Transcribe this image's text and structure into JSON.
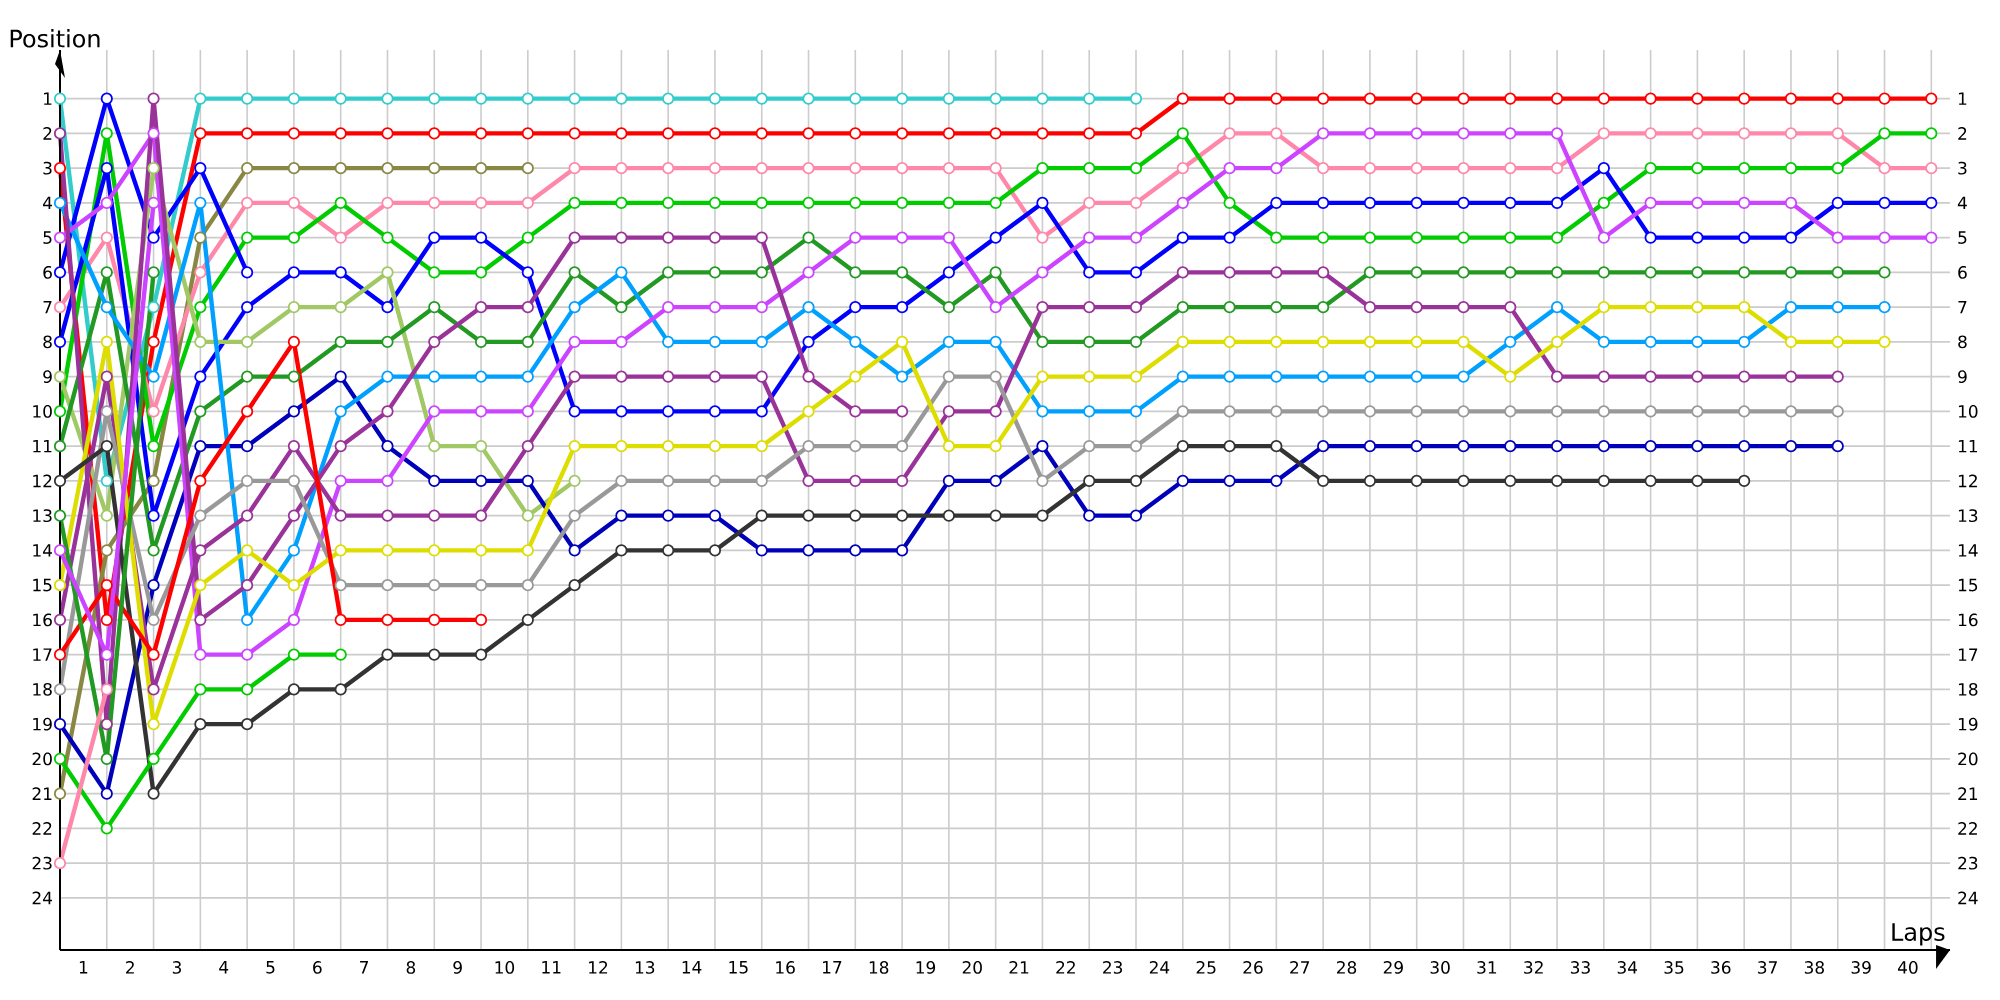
{
  "chart_data": {
    "type": "line",
    "xlabel": "Laps",
    "ylabel": "Position",
    "x": [
      0,
      1,
      2,
      3,
      4,
      5,
      6,
      7,
      8,
      9,
      10,
      11,
      12,
      13,
      14,
      15,
      16,
      17,
      18,
      19,
      20,
      21,
      22,
      23,
      24,
      25,
      26,
      27,
      28,
      29,
      30,
      31,
      32,
      33,
      34,
      35,
      36,
      37,
      38,
      39,
      40
    ],
    "xlim": [
      0,
      40.4
    ],
    "ylim": [
      25.5,
      -0.4
    ],
    "y2lim": [
      25.5,
      -0.4
    ],
    "xticks": [
      {
        "value": 0.5,
        "label": "1"
      },
      {
        "value": 1.5,
        "label": "2"
      },
      {
        "value": 2.5,
        "label": "3"
      },
      {
        "value": 3.5,
        "label": "4"
      },
      {
        "value": 4.5,
        "label": "5"
      },
      {
        "value": 5.5,
        "label": "6"
      },
      {
        "value": 6.5,
        "label": "7"
      },
      {
        "value": 7.5,
        "label": "8"
      },
      {
        "value": 8.5,
        "label": "9"
      },
      {
        "value": 9.5,
        "label": "10"
      },
      {
        "value": 10.5,
        "label": "11"
      },
      {
        "value": 11.5,
        "label": "12"
      },
      {
        "value": 12.5,
        "label": "13"
      },
      {
        "value": 13.5,
        "label": "14"
      },
      {
        "value": 14.5,
        "label": "15"
      },
      {
        "value": 15.5,
        "label": "16"
      },
      {
        "value": 16.5,
        "label": "17"
      },
      {
        "value": 17.5,
        "label": "18"
      },
      {
        "value": 18.5,
        "label": "19"
      },
      {
        "value": 19.5,
        "label": "20"
      },
      {
        "value": 20.5,
        "label": "21"
      },
      {
        "value": 21.5,
        "label": "22"
      },
      {
        "value": 22.5,
        "label": "23"
      },
      {
        "value": 23.5,
        "label": "24"
      },
      {
        "value": 24.5,
        "label": "25"
      },
      {
        "value": 25.5,
        "label": "26"
      },
      {
        "value": 26.5,
        "label": "27"
      },
      {
        "value": 27.5,
        "label": "28"
      },
      {
        "value": 28.5,
        "label": "29"
      },
      {
        "value": 29.5,
        "label": "30"
      },
      {
        "value": 30.5,
        "label": "31"
      },
      {
        "value": 31.5,
        "label": "32"
      },
      {
        "value": 32.5,
        "label": "33"
      },
      {
        "value": 33.5,
        "label": "34"
      },
      {
        "value": 34.5,
        "label": "35"
      },
      {
        "value": 35.5,
        "label": "36"
      },
      {
        "value": 36.5,
        "label": "37"
      },
      {
        "value": 37.5,
        "label": "38"
      },
      {
        "value": 38.5,
        "label": "39"
      },
      {
        "value": 39.5,
        "label": "40"
      },
      {
        "value": 1,
        "label": null
      },
      {
        "value": 2,
        "label": null
      },
      {
        "value": 3,
        "label": null
      },
      {
        "value": 4,
        "label": null
      },
      {
        "value": 5,
        "label": null
      },
      {
        "value": 6,
        "label": null
      },
      {
        "value": 7,
        "label": null
      },
      {
        "value": 8,
        "label": null
      },
      {
        "value": 9,
        "label": null
      },
      {
        "value": 10,
        "label": null
      },
      {
        "value": 11,
        "label": null
      },
      {
        "value": 12,
        "label": null
      },
      {
        "value": 13,
        "label": null
      },
      {
        "value": 14,
        "label": null
      },
      {
        "value": 15,
        "label": null
      },
      {
        "value": 16,
        "label": null
      },
      {
        "value": 17,
        "label": null
      },
      {
        "value": 18,
        "label": null
      },
      {
        "value": 19,
        "label": null
      },
      {
        "value": 20,
        "label": null
      },
      {
        "value": 21,
        "label": null
      },
      {
        "value": 22,
        "label": null
      },
      {
        "value": 23,
        "label": null
      },
      {
        "value": 24,
        "label": null
      },
      {
        "value": 25,
        "label": null
      },
      {
        "value": 26,
        "label": null
      },
      {
        "value": 27,
        "label": null
      },
      {
        "value": 28,
        "label": null
      },
      {
        "value": 29,
        "label": null
      },
      {
        "value": 30,
        "label": null
      },
      {
        "value": 31,
        "label": null
      },
      {
        "value": 32,
        "label": null
      },
      {
        "value": 33,
        "label": null
      },
      {
        "value": 34,
        "label": null
      },
      {
        "value": 35,
        "label": null
      },
      {
        "value": 36,
        "label": null
      },
      {
        "value": 37,
        "label": null
      },
      {
        "value": 38,
        "label": null
      },
      {
        "value": 39,
        "label": null
      },
      {
        "value": 40,
        "label": null
      }
    ],
    "yticks": [
      1,
      2,
      3,
      4,
      5,
      6,
      7,
      8,
      9,
      10,
      11,
      12,
      13,
      14,
      15,
      16,
      17,
      18,
      19,
      20,
      21,
      22,
      23,
      24
    ],
    "y2ticks": [
      1,
      2,
      3,
      4,
      5,
      6,
      7,
      8,
      9,
      10,
      11,
      12,
      13,
      14,
      15,
      16,
      17,
      18,
      19,
      20,
      21,
      22,
      23,
      24
    ],
    "grid": true,
    "marker": "circle",
    "line_style": "solid",
    "series": [
      {
        "color": "#33cccc",
        "values": [
          1,
          12,
          7,
          1,
          1,
          1,
          1,
          1,
          1,
          1,
          1,
          1,
          1,
          1,
          1,
          1,
          1,
          1,
          1,
          1,
          1,
          1,
          1,
          1,
          null,
          null,
          null,
          null,
          null,
          null,
          null,
          null,
          null,
          null,
          null,
          null,
          null,
          null,
          null,
          null,
          null
        ]
      },
      {
        "color": "#ff0000",
        "values": [
          3,
          16,
          8,
          2,
          2,
          2,
          2,
          2,
          2,
          2,
          2,
          2,
          2,
          2,
          2,
          2,
          2,
          2,
          2,
          2,
          2,
          2,
          2,
          2,
          1,
          1,
          1,
          1,
          1,
          1,
          1,
          1,
          1,
          1,
          1,
          1,
          1,
          1,
          1,
          1,
          1
        ]
      },
      {
        "color": "#888844",
        "values": [
          21,
          14,
          12,
          5,
          3,
          3,
          3,
          3,
          3,
          3,
          3,
          null,
          null,
          null,
          null,
          null,
          null,
          null,
          null,
          null,
          null,
          null,
          null,
          null,
          null,
          null,
          null,
          null,
          null,
          null,
          null,
          null,
          null,
          null,
          null,
          null,
          null,
          null,
          null,
          null,
          null
        ]
      },
      {
        "color": "#ff88aa",
        "values": [
          7,
          5,
          10,
          6,
          4,
          4,
          5,
          4,
          4,
          4,
          4,
          3,
          3,
          3,
          3,
          3,
          3,
          3,
          3,
          3,
          3,
          5,
          4,
          4,
          3,
          2,
          2,
          3,
          3,
          3,
          3,
          3,
          3,
          2,
          2,
          2,
          2,
          2,
          2,
          3,
          3
        ]
      },
      {
        "color": "#00cc00",
        "values": [
          10,
          2,
          11,
          7,
          5,
          5,
          4,
          5,
          6,
          6,
          5,
          4,
          4,
          4,
          4,
          4,
          4,
          4,
          4,
          4,
          4,
          3,
          3,
          3,
          2,
          4,
          5,
          5,
          5,
          5,
          5,
          5,
          5,
          4,
          3,
          3,
          3,
          3,
          3,
          2,
          2
        ]
      },
      {
        "color": "#0000ff",
        "values": [
          8,
          3,
          13,
          9,
          7,
          6,
          6,
          7,
          5,
          5,
          6,
          10,
          10,
          10,
          10,
          10,
          8,
          7,
          7,
          6,
          5,
          4,
          6,
          6,
          5,
          5,
          4,
          4,
          4,
          4,
          4,
          4,
          4,
          3,
          5,
          5,
          5,
          5,
          4,
          4,
          4
        ]
      },
      {
        "color": "#0000ff",
        "values": [
          6,
          1,
          5,
          3,
          6,
          null,
          null,
          null,
          null,
          null,
          null,
          null,
          null,
          null,
          null,
          null,
          null,
          null,
          null,
          null,
          null,
          null,
          null,
          null,
          null,
          null,
          null,
          null,
          null,
          null,
          null,
          null,
          null,
          null,
          null,
          null,
          null,
          null,
          null,
          null,
          null
        ]
      },
      {
        "color": "#a0c864",
        "values": [
          9,
          13,
          3,
          8,
          8,
          7,
          7,
          6,
          11,
          11,
          13,
          12,
          null,
          null,
          null,
          null,
          null,
          null,
          null,
          null,
          null,
          null,
          null,
          null,
          null,
          null,
          null,
          null,
          null,
          null,
          null,
          null,
          null,
          null,
          null,
          null,
          null,
          null,
          null,
          null,
          null
        ]
      },
      {
        "color": "#229922",
        "values": [
          11,
          6,
          14,
          10,
          9,
          9,
          8,
          8,
          7,
          8,
          8,
          6,
          7,
          6,
          6,
          6,
          5,
          6,
          6,
          7,
          6,
          8,
          8,
          8,
          7,
          7,
          7,
          7,
          6,
          6,
          6,
          6,
          6,
          6,
          6,
          6,
          6,
          6,
          6,
          6,
          null
        ]
      },
      {
        "color": "#0000bb",
        "values": [
          19,
          21,
          15,
          11,
          11,
          10,
          9,
          11,
          12,
          12,
          12,
          14,
          13,
          13,
          13,
          14,
          14,
          14,
          14,
          12,
          12,
          11,
          13,
          13,
          12,
          12,
          12,
          11,
          11,
          11,
          11,
          11,
          11,
          11,
          11,
          11,
          11,
          11,
          11,
          null,
          null
        ]
      },
      {
        "color": "#00a0ff",
        "values": [
          4,
          7,
          9,
          4,
          16,
          14,
          10,
          9,
          9,
          9,
          9,
          7,
          6,
          8,
          8,
          8,
          7,
          8,
          9,
          8,
          8,
          10,
          10,
          10,
          9,
          9,
          9,
          9,
          9,
          9,
          9,
          8,
          7,
          8,
          8,
          8,
          8,
          7,
          7,
          7,
          null
        ]
      },
      {
        "color": "#cc44ff",
        "values": [
          5,
          4,
          2,
          17,
          17,
          16,
          12,
          12,
          10,
          10,
          10,
          8,
          8,
          7,
          7,
          7,
          6,
          5,
          5,
          5,
          7,
          6,
          5,
          5,
          4,
          3,
          3,
          2,
          2,
          2,
          2,
          2,
          2,
          5,
          4,
          4,
          4,
          4,
          5,
          5,
          5
        ]
      },
      {
        "color": "#993399",
        "values": [
          16,
          9,
          18,
          14,
          13,
          11,
          13,
          13,
          13,
          13,
          11,
          9,
          9,
          9,
          9,
          9,
          12,
          12,
          12,
          10,
          10,
          7,
          7,
          7,
          6,
          6,
          6,
          6,
          7,
          7,
          7,
          7,
          9,
          9,
          9,
          9,
          9,
          9,
          9,
          null,
          null
        ]
      },
      {
        "color": "#993399",
        "values": [
          2,
          19,
          1,
          16,
          15,
          13,
          11,
          10,
          8,
          7,
          7,
          5,
          5,
          5,
          5,
          5,
          9,
          10,
          10,
          null,
          null,
          null,
          null,
          null,
          null,
          null,
          null,
          null,
          null,
          null,
          null,
          null,
          null,
          null,
          null,
          null,
          null,
          null,
          null,
          null,
          null
        ]
      },
      {
        "color": "#999999",
        "values": [
          18,
          10,
          16,
          13,
          12,
          12,
          15,
          15,
          15,
          15,
          15,
          13,
          12,
          12,
          12,
          12,
          11,
          11,
          11,
          9,
          9,
          12,
          11,
          11,
          10,
          10,
          10,
          10,
          10,
          10,
          10,
          10,
          10,
          10,
          10,
          10,
          10,
          10,
          10,
          null,
          null
        ]
      },
      {
        "color": "#dddd00",
        "values": [
          15,
          8,
          19,
          15,
          14,
          15,
          14,
          14,
          14,
          14,
          14,
          11,
          11,
          11,
          11,
          11,
          10,
          9,
          8,
          11,
          11,
          9,
          9,
          9,
          8,
          8,
          8,
          8,
          8,
          8,
          8,
          9,
          8,
          7,
          7,
          7,
          7,
          8,
          8,
          8,
          null
        ]
      },
      {
        "color": "#333333",
        "values": [
          12,
          11,
          21,
          19,
          19,
          18,
          18,
          17,
          17,
          17,
          16,
          15,
          14,
          14,
          14,
          13,
          13,
          13,
          13,
          13,
          13,
          13,
          12,
          12,
          11,
          11,
          11,
          12,
          12,
          12,
          12,
          12,
          12,
          12,
          12,
          12,
          12,
          null,
          null,
          null,
          null
        ]
      },
      {
        "color": "#ff0000",
        "values": [
          17,
          15,
          17,
          12,
          10,
          8,
          16,
          16,
          16,
          16,
          null,
          null,
          null,
          null,
          null,
          null,
          null,
          null,
          null,
          null,
          null,
          null,
          null,
          null,
          null,
          null,
          null,
          null,
          null,
          null,
          null,
          null,
          null,
          null,
          null,
          null,
          null,
          null,
          null,
          null,
          null
        ]
      },
      {
        "color": "#00cc00",
        "values": [
          20,
          22,
          20,
          18,
          18,
          17,
          17,
          null,
          null,
          null,
          null,
          null,
          null,
          null,
          null,
          null,
          null,
          null,
          null,
          null,
          null,
          null,
          null,
          null,
          null,
          null,
          null,
          null,
          null,
          null,
          null,
          null,
          null,
          null,
          null,
          null,
          null,
          null,
          null,
          null,
          null
        ]
      },
      {
        "color": "#229922",
        "values": [
          13,
          20,
          6,
          null,
          null,
          null,
          null,
          null,
          null,
          null,
          null,
          null,
          null,
          null,
          null,
          null,
          null,
          null,
          null,
          null,
          null,
          null,
          null,
          null,
          null,
          null,
          null,
          null,
          null,
          null,
          null,
          null,
          null,
          null,
          null,
          null,
          null,
          null,
          null,
          null,
          null
        ]
      },
      {
        "color": "#cc44ff",
        "values": [
          14,
          17,
          4,
          null,
          null,
          null,
          null,
          null,
          null,
          null,
          null,
          null,
          null,
          null,
          null,
          null,
          null,
          null,
          null,
          null,
          null,
          null,
          null,
          null,
          null,
          null,
          null,
          null,
          null,
          null,
          null,
          null,
          null,
          null,
          null,
          null,
          null,
          null,
          null,
          null,
          null
        ]
      },
      {
        "color": "#ff88aa",
        "values": [
          23,
          18,
          null,
          null,
          null,
          null,
          null,
          null,
          null,
          null,
          null,
          null,
          null,
          null,
          null,
          null,
          null,
          null,
          null,
          null,
          null,
          null,
          null,
          null,
          null,
          null,
          null,
          null,
          null,
          null,
          null,
          null,
          null,
          null,
          null,
          null,
          null,
          null,
          null,
          null,
          null
        ]
      }
    ]
  }
}
